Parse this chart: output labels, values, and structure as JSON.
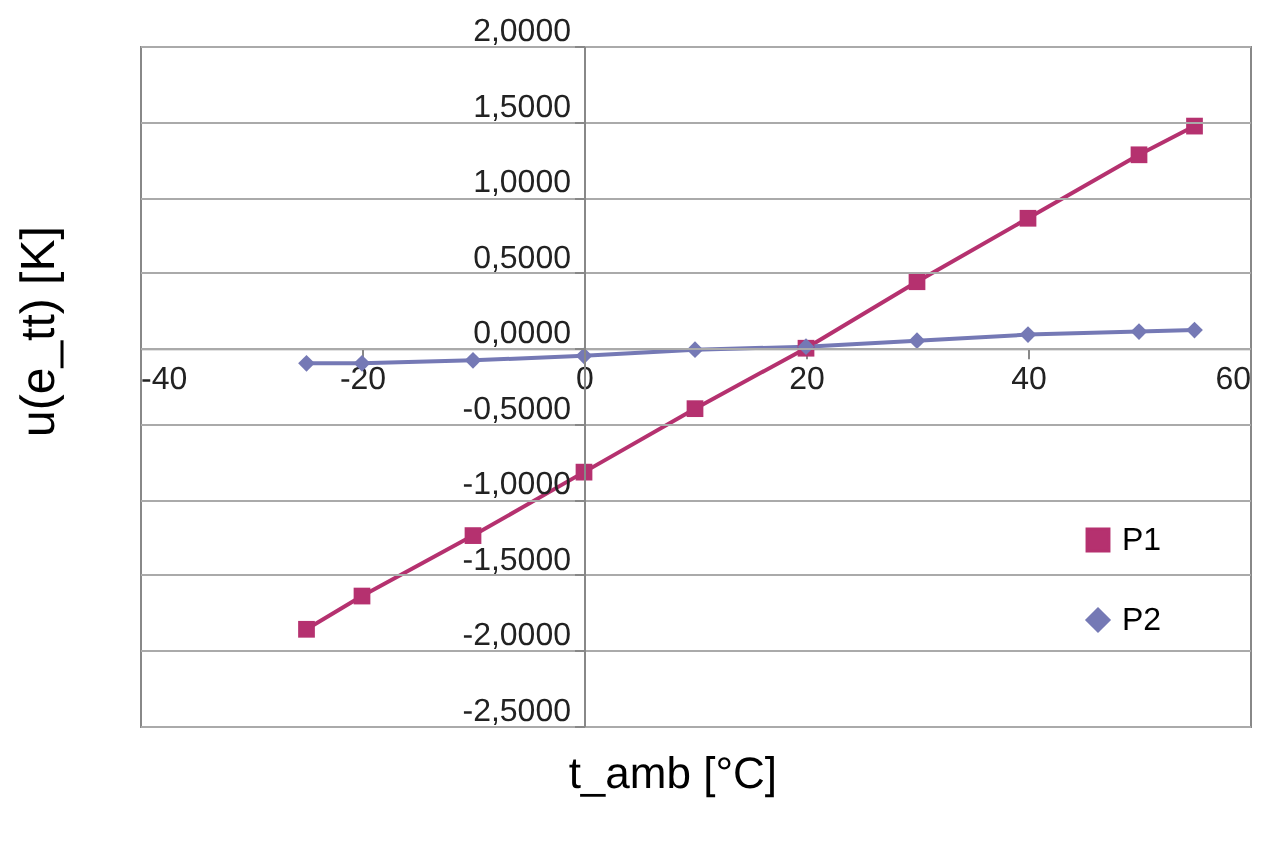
{
  "chart_data": {
    "type": "line",
    "xlabel": "t_amb [°C]",
    "ylabel": "u(e_tt) [K]",
    "x": [
      -25,
      -20,
      -10,
      0,
      10,
      20,
      30,
      40,
      50,
      55
    ],
    "series": [
      {
        "name": "P1",
        "color": "#b5316f",
        "marker": "square",
        "values": [
          -1.86,
          -1.64,
          -1.24,
          -0.82,
          -0.4,
          0.0,
          0.44,
          0.86,
          1.28,
          1.47
        ]
      },
      {
        "name": "P2",
        "color": "#7579b5",
        "marker": "diamond",
        "values": [
          -0.1,
          -0.1,
          -0.08,
          -0.05,
          -0.01,
          0.01,
          0.05,
          0.09,
          0.11,
          0.12
        ]
      }
    ],
    "xlim": [
      -40,
      60
    ],
    "xticks": [
      -40,
      -20,
      0,
      20,
      40,
      60
    ],
    "ylim": [
      -2.5,
      2
    ],
    "yticks": [
      {
        "value": -2.5,
        "label": "-2,5000"
      },
      {
        "value": -2,
        "label": "-2,0000"
      },
      {
        "value": -1.5,
        "label": "-1,5000"
      },
      {
        "value": -1,
        "label": "-1,0000"
      },
      {
        "value": -0.5,
        "label": "-0,5000"
      },
      {
        "value": 0,
        "label": "0,0000"
      },
      {
        "value": 0.5,
        "label": "0,5000"
      },
      {
        "value": 1,
        "label": "1,0000"
      },
      {
        "value": 1.5,
        "label": "1,5000"
      },
      {
        "value": 2,
        "label": "2,0000"
      }
    ],
    "grid": "y",
    "legend": "bottom right",
    "line_style": "solid"
  }
}
